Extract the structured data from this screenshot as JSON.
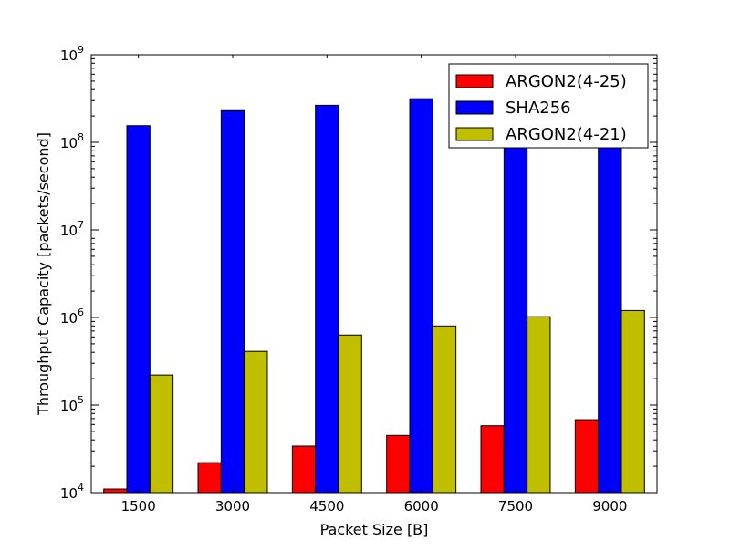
{
  "chart_data": {
    "type": "bar",
    "xlabel": "Packet Size [B]",
    "ylabel": "Throughput Capacity [packets/second]",
    "yscale": "log",
    "ylim": [
      10000,
      1000000000
    ],
    "yticks": [
      {
        "base": "10",
        "exp": "4"
      },
      {
        "base": "10",
        "exp": "5"
      },
      {
        "base": "10",
        "exp": "6"
      },
      {
        "base": "10",
        "exp": "7"
      },
      {
        "base": "10",
        "exp": "8"
      },
      {
        "base": "10",
        "exp": "9"
      }
    ],
    "categories": [
      "1500",
      "3000",
      "4500",
      "6000",
      "7500",
      "9000"
    ],
    "series": [
      {
        "name": "ARGON2(4-25)",
        "color": "#ff0000",
        "values": [
          11000,
          22000,
          34000,
          45000,
          58000,
          68000
        ]
      },
      {
        "name": "SHA256",
        "color": "#0000ff",
        "values": [
          155000000,
          230000000,
          265000000,
          315000000,
          330000000,
          350000000
        ]
      },
      {
        "name": "ARGON2(4-21)",
        "color": "#bfbf00",
        "values": [
          220000,
          410000,
          630000,
          800000,
          1020000,
          1200000
        ]
      }
    ],
    "legend_position": "top-right",
    "grid": false
  }
}
